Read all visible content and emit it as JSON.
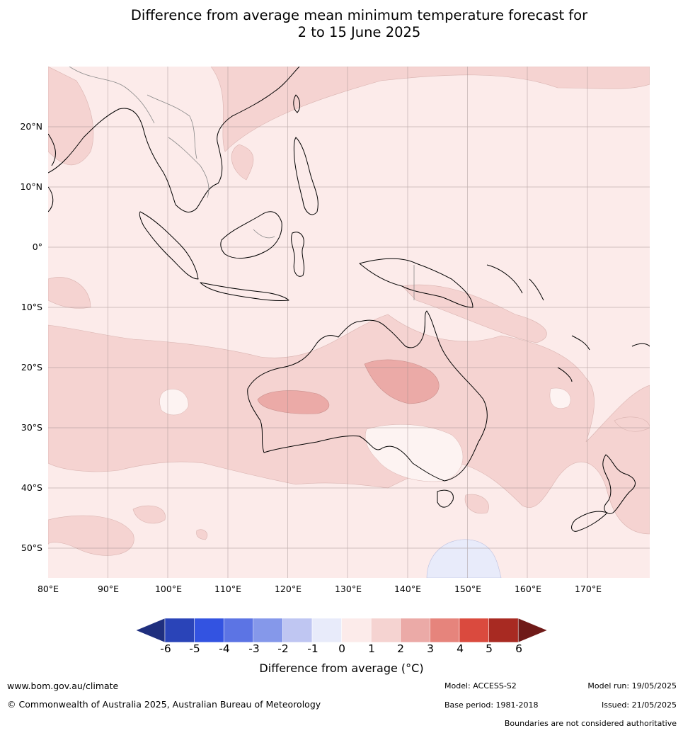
{
  "title": {
    "line1": "Difference from average mean minimum temperature forecast for",
    "line2": "2 to 15 June 2025"
  },
  "axes": {
    "lat_labels": [
      "20°N",
      "10°N",
      "0°",
      "10°S",
      "20°S",
      "30°S",
      "40°S",
      "50°S"
    ],
    "lon_labels": [
      "80°E",
      "90°E",
      "100°E",
      "110°E",
      "120°E",
      "130°E",
      "140°E",
      "150°E",
      "160°E",
      "170°E"
    ]
  },
  "map_extent": {
    "lon_min": 80,
    "lon_max": 180,
    "lat_min": -55,
    "lat_max": 30
  },
  "colorbar": {
    "ticks": [
      "-6",
      "-5",
      "-4",
      "-3",
      "-2",
      "-1",
      "0",
      "1",
      "2",
      "3",
      "4",
      "5",
      "6"
    ],
    "colors": [
      "#1f2f7e",
      "#2a44b8",
      "#3353e1",
      "#5c74e4",
      "#8598ea",
      "#bfc6f2",
      "#e8ebfa",
      "#fcebea",
      "#f5d3d1",
      "#ebaaa7",
      "#e6847c",
      "#da4a3e",
      "#a82a22",
      "#6f1a18"
    ],
    "label": "Difference from average (",
    "label_unit": "°C)"
  },
  "footer": {
    "website": "www.bom.gov.au/climate",
    "copyright": "© Commonwealth of Australia 2025, Australian Bureau of Meteorology",
    "model": "Model: ACCESS-S2",
    "base_period": "Base period: 1981-2018",
    "model_run": "Model run: 19/05/2025",
    "issued": "Issued: 21/05/2025",
    "disclaimer": "Boundaries are not considered authoritative"
  }
}
